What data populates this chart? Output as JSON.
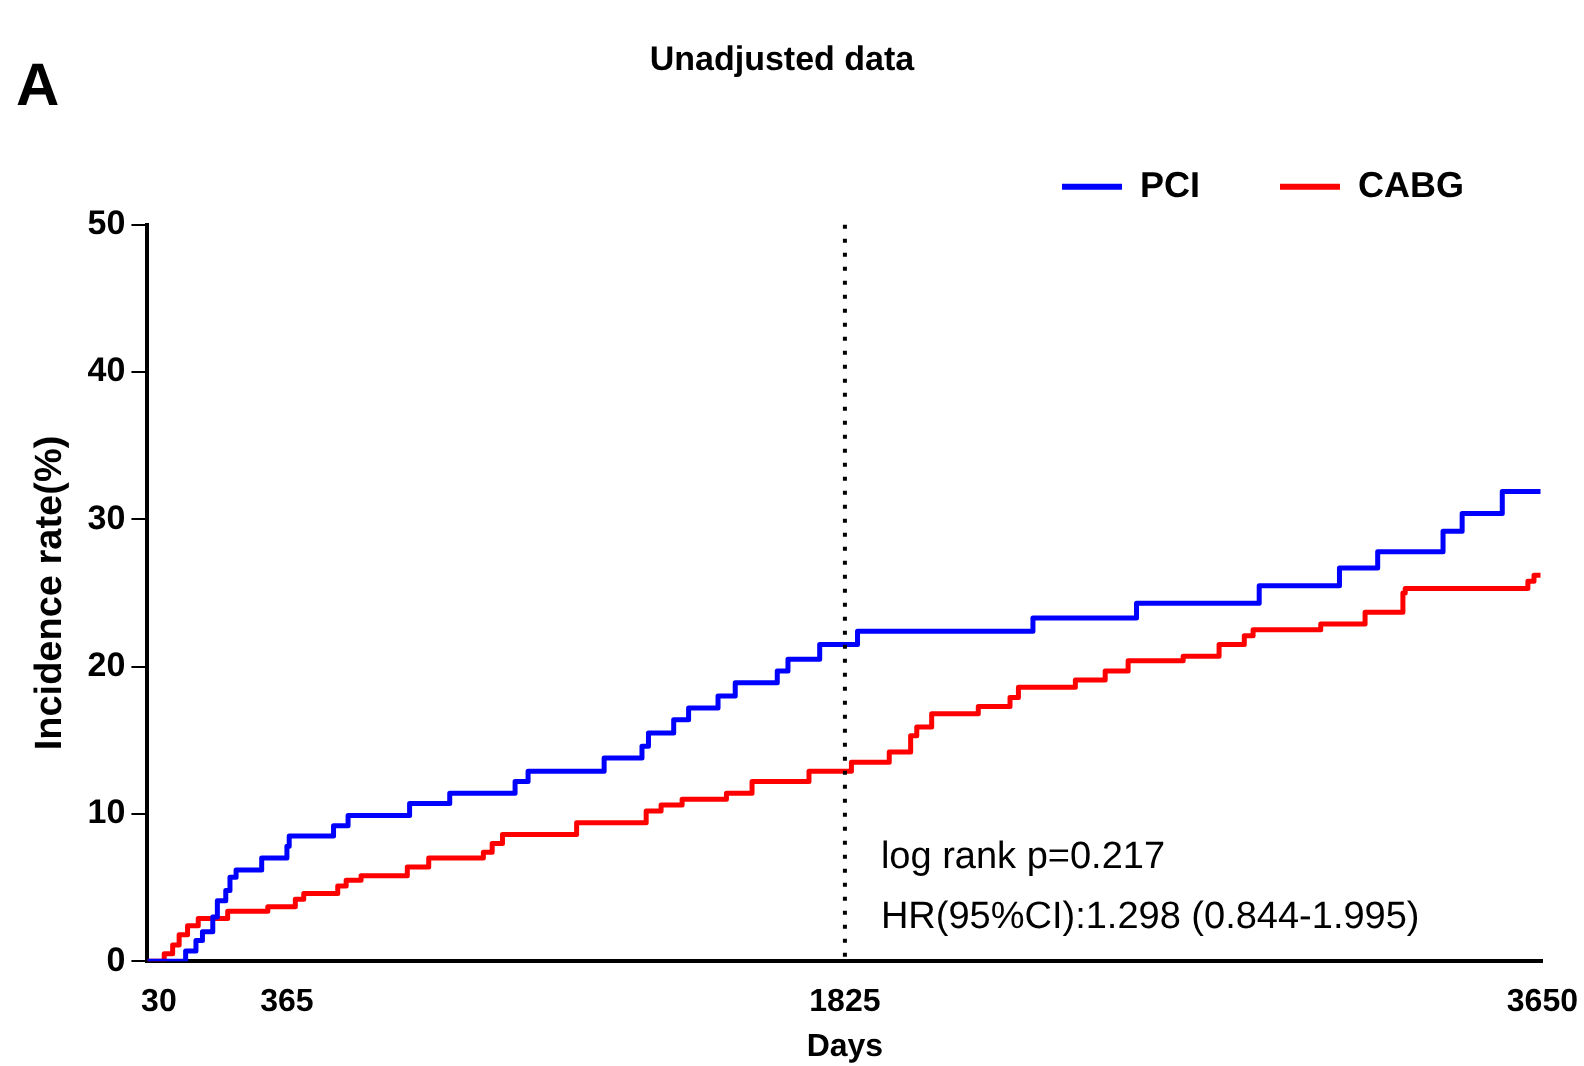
{
  "chart_data": {
    "type": "step",
    "title": "Unadjusted data",
    "xlabel": "Days",
    "ylabel": "Incidence rate(%)",
    "xlim": [
      0,
      3650
    ],
    "xticks": [
      30,
      365,
      1825,
      3650
    ],
    "ylim": [
      0,
      50
    ],
    "yticks": [
      0,
      10,
      20,
      30,
      40,
      50
    ],
    "grid": false,
    "legend": "top right",
    "marker": "none",
    "series": [
      {
        "name": "PCI",
        "color": "#0000ff",
        "x": [
          0,
          100,
          127,
          144,
          171,
          183,
          205,
          216,
          232,
          299,
          365,
          371,
          487,
          525,
          686,
          791,
          962,
          996,
          1195,
          1294,
          1311,
          1377,
          1416,
          1493,
          1538,
          1648,
          1676,
          1759,
          1858,
          2317,
          2588,
          2909,
          3119,
          3219,
          3390,
          3440,
          3545,
          3645
        ],
        "values": [
          0,
          0.7,
          1.4,
          2,
          3,
          4.1,
          4.8,
          5.7,
          6.2,
          7,
          7.8,
          8.5,
          9.2,
          9.9,
          10.7,
          11.4,
          12.2,
          12.9,
          13.8,
          14.6,
          15.5,
          16.4,
          17.2,
          18,
          18.9,
          19.7,
          20.5,
          21.5,
          22.4,
          23.3,
          24.3,
          25.5,
          26.7,
          27.8,
          29.2,
          30.4,
          31.9,
          31.9
        ]
      },
      {
        "name": "CABG",
        "color": "#ff0000",
        "x": [
          0,
          44,
          66,
          83,
          105,
          133,
          210,
          315,
          387,
          409,
          498,
          520,
          559,
          680,
          736,
          879,
          902,
          929,
          1123,
          1305,
          1344,
          1399,
          1515,
          1582,
          1731,
          1842,
          1941,
          1997,
          2013,
          2052,
          2174,
          2257,
          2279,
          2428,
          2506,
          2566,
          2710,
          2804,
          2870,
          2893,
          3070,
          3186,
          3285,
          3291,
          3612,
          3628,
          3645
        ],
        "values": [
          0,
          0.5,
          1.1,
          1.8,
          2.4,
          2.9,
          3.4,
          3.7,
          4.2,
          4.6,
          5.1,
          5.5,
          5.8,
          6.4,
          7,
          7.4,
          8,
          8.6,
          9.4,
          10.2,
          10.6,
          11,
          11.4,
          12.2,
          12.9,
          13.5,
          14.2,
          15.3,
          15.9,
          16.8,
          17.3,
          17.9,
          18.6,
          19.1,
          19.7,
          20.4,
          20.7,
          21.5,
          22.1,
          22.5,
          22.9,
          23.7,
          25,
          25.3,
          25.8,
          26.2,
          26.2
        ]
      }
    ],
    "ref_lines": [
      {
        "axis": "x",
        "value": 1825,
        "color": "#000000",
        "line_style": "dotted"
      }
    ],
    "annotations": [
      "A",
      "log rank p=0.217",
      "HR(95%CI):1.298 (0.844-1.995)"
    ]
  }
}
